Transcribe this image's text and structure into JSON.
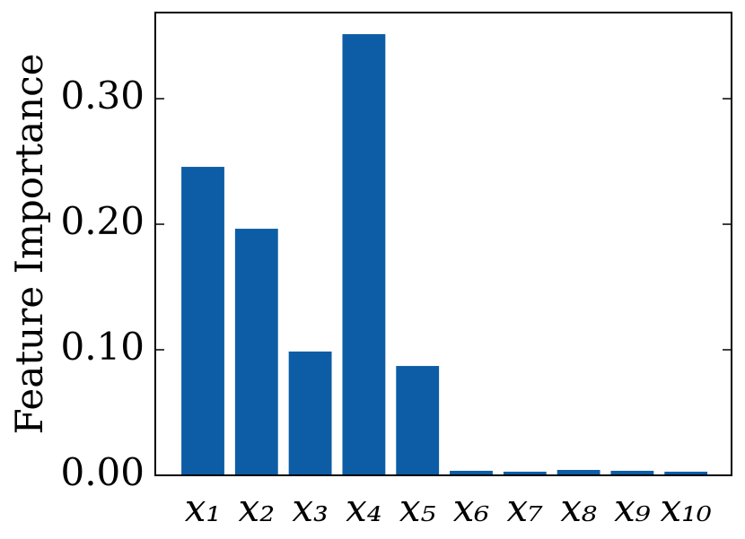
{
  "chart_data": {
    "type": "bar",
    "ylabel": "Feature Importance",
    "categories": [
      "x₁",
      "x₂",
      "x₃",
      "x₄",
      "x₅",
      "x₆",
      "x₇",
      "x₈",
      "x₉",
      "x₁₀"
    ],
    "values": [
      0.2457,
      0.1964,
      0.0986,
      0.3514,
      0.0871,
      0.0036,
      0.0029,
      0.0043,
      0.0036,
      0.0029
    ],
    "color": "#0c5da5",
    "ylim": [
      0,
      0.3686
    ],
    "yticks": [
      {
        "value": 0,
        "label": "0.00"
      },
      {
        "value": 0.1,
        "label": "0.10"
      },
      {
        "value": 0.2,
        "label": "0.20"
      },
      {
        "value": 0.3,
        "label": "0.30"
      }
    ],
    "grid": false
  }
}
